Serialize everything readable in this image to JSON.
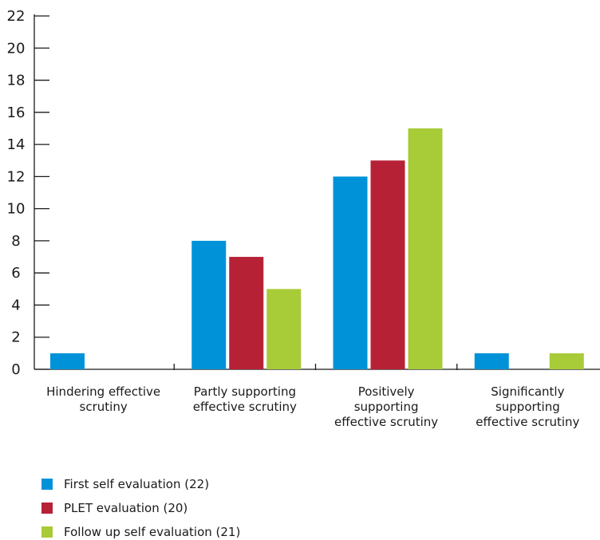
{
  "chart_data": {
    "type": "bar",
    "title": "",
    "xlabel": "",
    "ylabel": "",
    "ylim": [
      0,
      22
    ],
    "y_ticks": [
      0,
      2,
      4,
      6,
      8,
      10,
      12,
      14,
      16,
      18,
      20,
      22
    ],
    "grid": false,
    "legend_position": "bottom-left",
    "categories": [
      [
        "Hindering effective",
        "scrutiny"
      ],
      [
        "Partly supporting",
        "effective scrutiny"
      ],
      [
        "Positively",
        "supporting",
        "effective scrutiny"
      ],
      [
        "Significantly",
        "supporting",
        "effective scrutiny"
      ]
    ],
    "series": [
      {
        "name": "First self evaluation (22)",
        "color": "#0092d8",
        "values": [
          1,
          8,
          12,
          1
        ]
      },
      {
        "name": "PLET evaluation (20)",
        "color": "#b72136",
        "values": [
          0,
          7,
          13,
          0
        ]
      },
      {
        "name": "Follow up self evaluation (21)",
        "color": "#a8cb38",
        "values": [
          0,
          5,
          15,
          1
        ]
      }
    ]
  }
}
